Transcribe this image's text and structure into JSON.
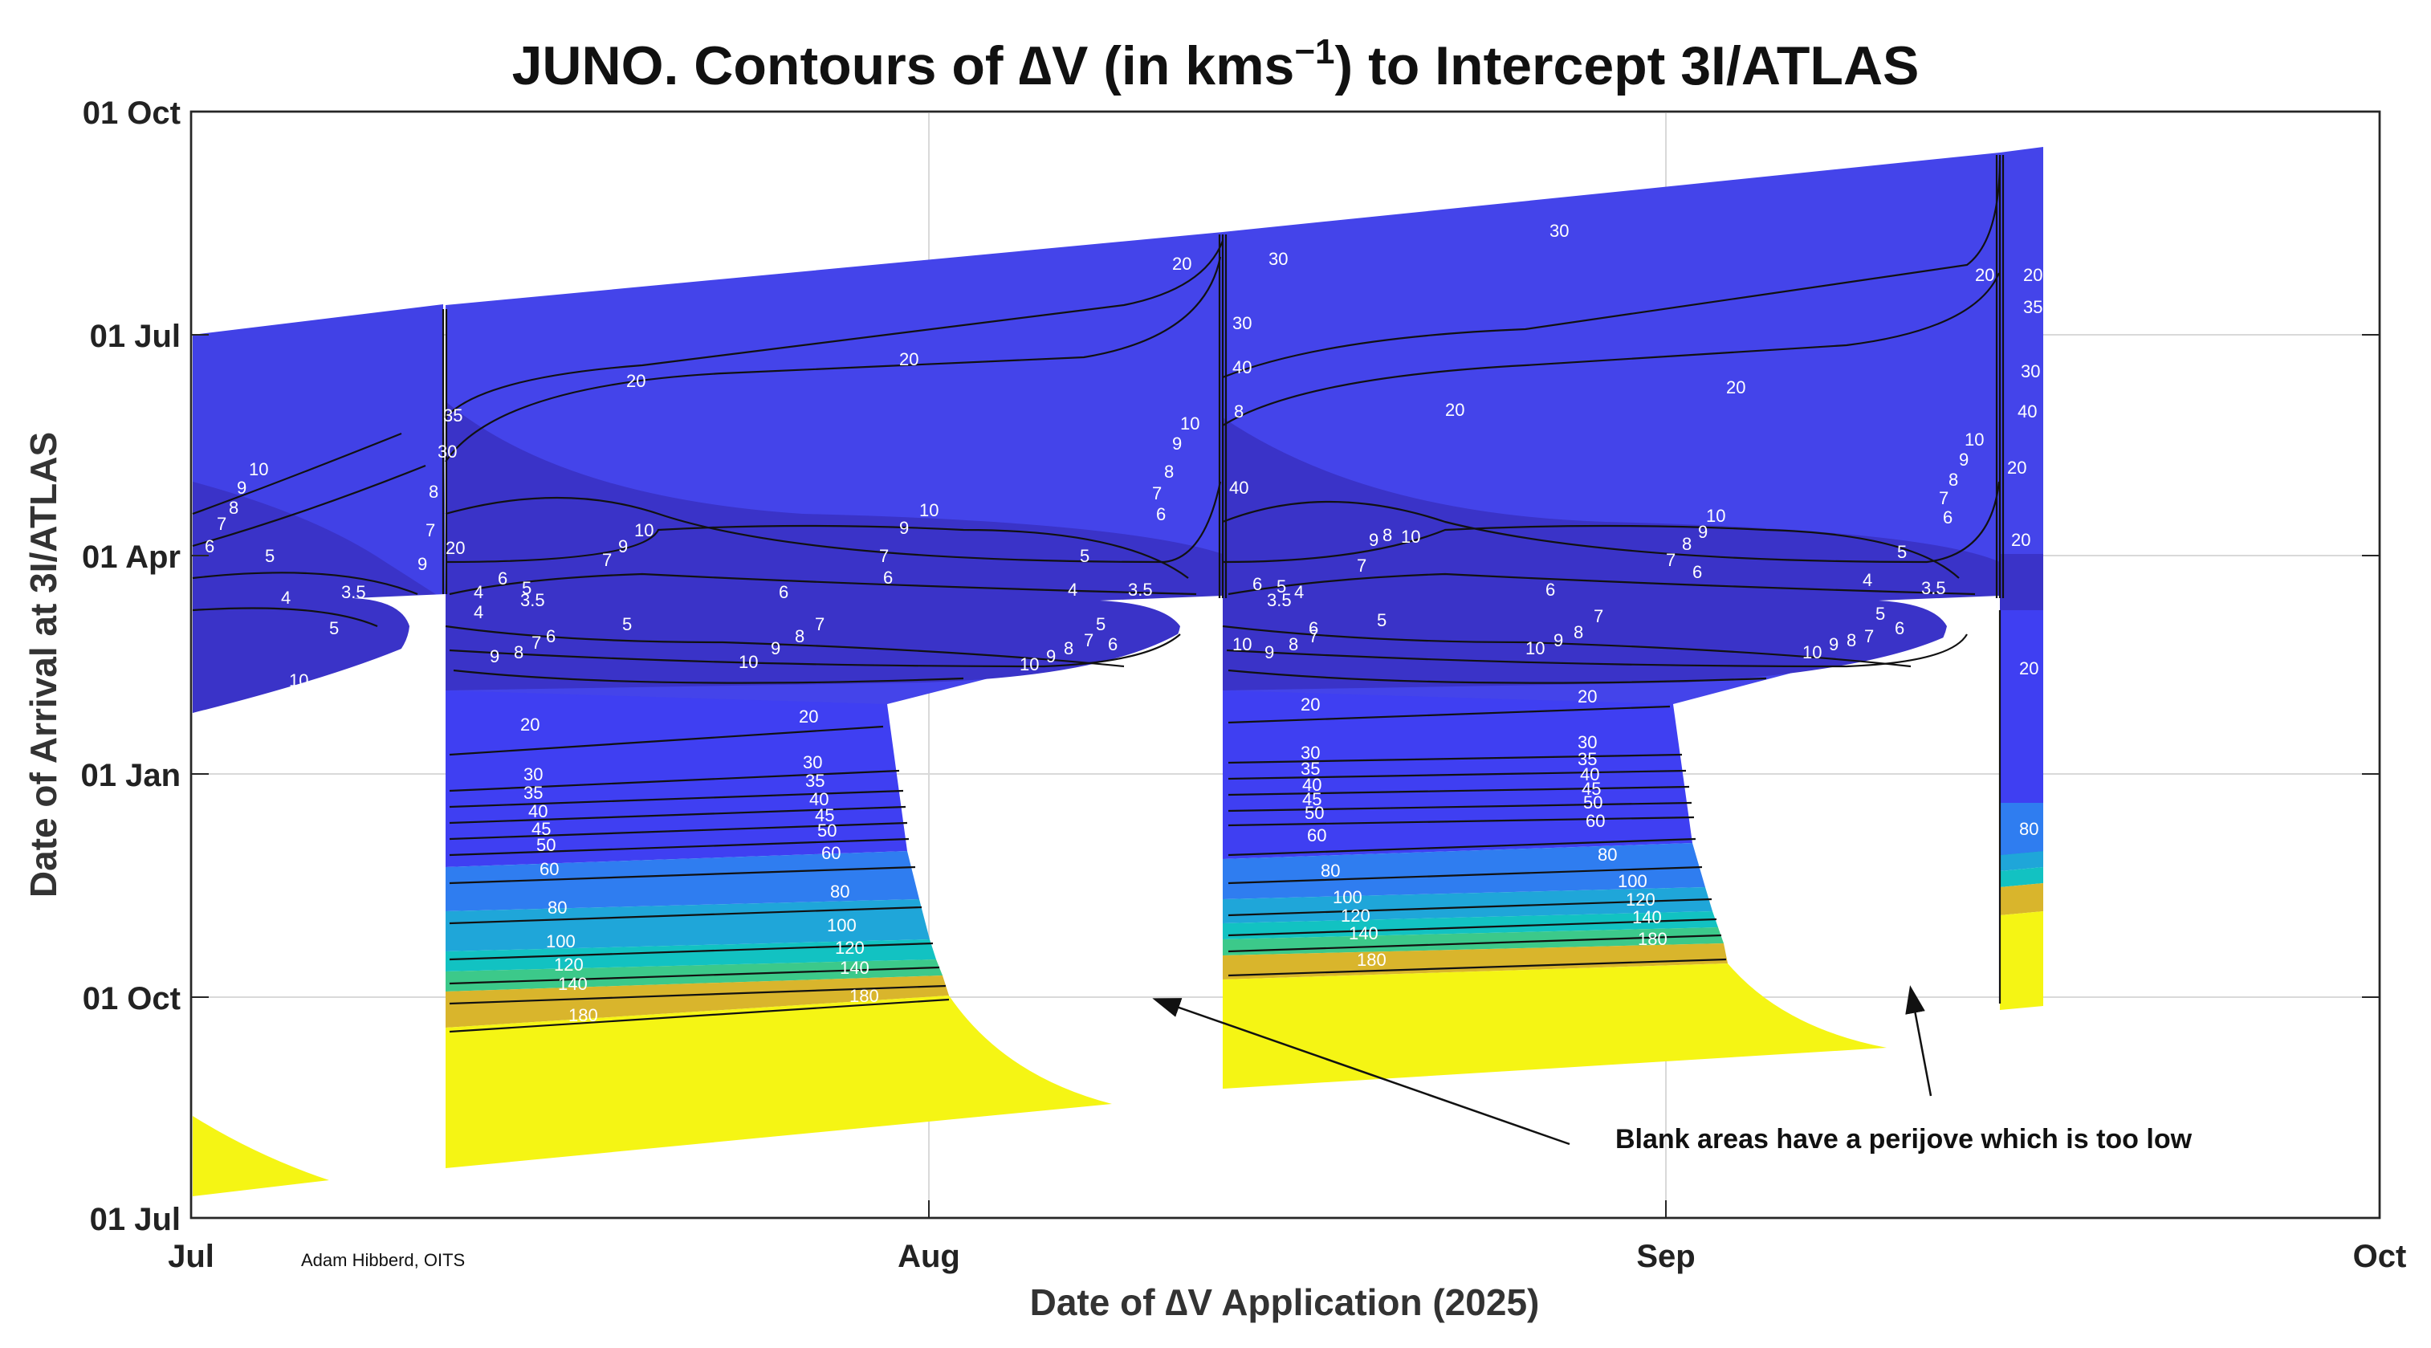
{
  "chart_data": {
    "type": "contour",
    "title_main": "JUNO. Contours of ∆V (in kms",
    "title_sup": "−1",
    "title_end": ") to Intercept 3I/ATLAS",
    "xlabel": "Date of ∆V Application (2025)",
    "ylabel": "Date of Arrival at 3I/ATLAS",
    "x_ticks": [
      "Jul",
      "Aug",
      "Sep",
      "Oct"
    ],
    "y_ticks": [
      "01 Jul",
      "01 Oct",
      "01 Jan",
      "01 Apr",
      "01 Jul",
      "01 Oct"
    ],
    "x_range": [
      "2025-07-01",
      "2025-10-01"
    ],
    "grid": true,
    "contour_levels": [
      3.5,
      4,
      5,
      6,
      7,
      8,
      9,
      10,
      20,
      30,
      35,
      40,
      45,
      50,
      60,
      80,
      100,
      120,
      140,
      180
    ],
    "color_bands": [
      {
        "level": "< 20",
        "color": "#3a33c8"
      },
      {
        "level": "20-30",
        "color": "#4343e8"
      },
      {
        "level": "30-60",
        "color": "#3f3ff2"
      },
      {
        "level": "60-80",
        "color": "#2f7df0"
      },
      {
        "level": "80-100",
        "color": "#1fa6d9"
      },
      {
        "level": "100-120",
        "color": "#12c2c2"
      },
      {
        "level": "120-140",
        "color": "#3cc98a"
      },
      {
        "level": "140-180",
        "color": "#d9b52c"
      },
      {
        "level": "> 180",
        "color": "#f5f514"
      }
    ],
    "blank_color": "#ffffff",
    "annotation": "Blank areas have a perijove which is too low",
    "credit": "Adam Hibberd, OITS"
  }
}
